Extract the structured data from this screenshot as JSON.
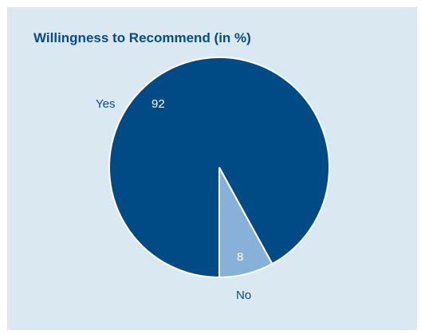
{
  "chart_data": {
    "type": "pie",
    "title": "Willingness to Recommend (in %)",
    "categories": [
      "Yes",
      "No"
    ],
    "values": [
      92,
      8
    ],
    "colors": [
      "#004a86",
      "#87b1d8"
    ],
    "label_colors": {
      "category": "#0b4a8a",
      "value_on_dark": "#ffffff",
      "value_on_light": "#ffffff"
    },
    "grid": false,
    "legend": "none"
  }
}
